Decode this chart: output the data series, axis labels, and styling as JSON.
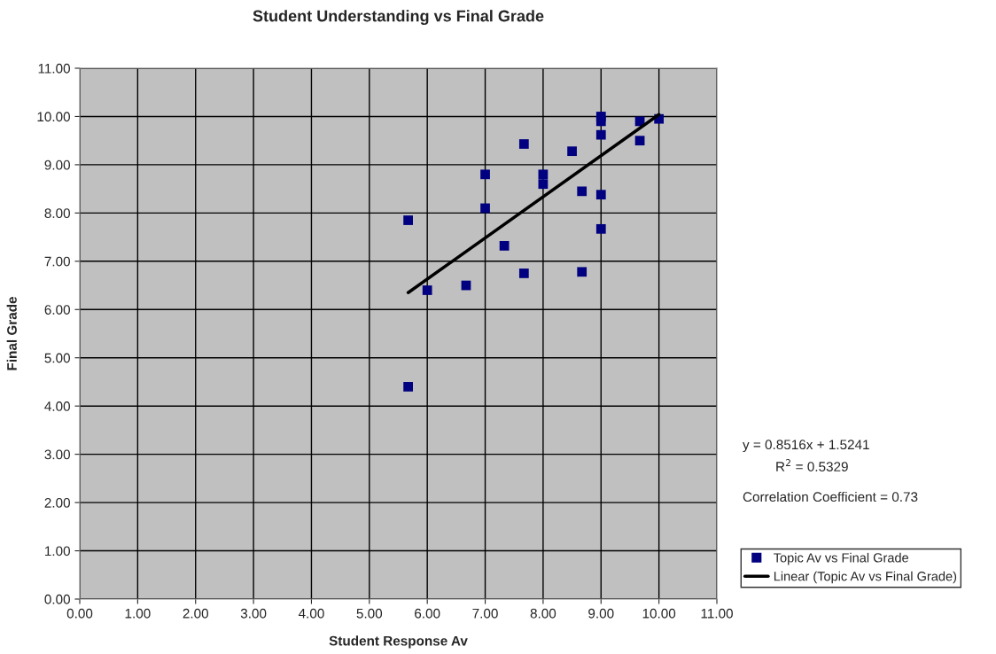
{
  "chart_data": {
    "type": "scatter",
    "title": "Student Understanding vs Final Grade",
    "xlabel": "Student Response Av",
    "ylabel": "Final Grade",
    "series": [
      {
        "name": "Topic Av vs Final Grade",
        "color": "#000080",
        "marker": "square",
        "x": [
          5.67,
          5.67,
          6.0,
          6.67,
          7.0,
          7.0,
          7.33,
          7.67,
          7.67,
          8.0,
          8.0,
          8.5,
          8.67,
          8.67,
          9.0,
          9.0,
          9.0,
          9.0,
          9.0,
          9.67,
          9.67,
          10.0
        ],
        "values": [
          7.85,
          4.4,
          6.4,
          6.5,
          8.8,
          8.1,
          7.32,
          9.43,
          6.75,
          8.8,
          8.6,
          9.28,
          8.45,
          6.78,
          10.0,
          9.9,
          9.62,
          8.38,
          7.67,
          9.9,
          9.5,
          9.95
        ]
      },
      {
        "name": "Linear (Topic Av vs Final Grade)",
        "type": "line",
        "color": "#000000",
        "line_style": "solid",
        "x": [
          5.67,
          10.0
        ],
        "values": [
          6.35,
          10.04
        ]
      }
    ],
    "xlim": [
      0,
      11
    ],
    "ylim": [
      0,
      11
    ],
    "xticks": [
      {
        "value": 0,
        "label": "0.00"
      },
      {
        "value": 1,
        "label": "1.00"
      },
      {
        "value": 2,
        "label": "2.00"
      },
      {
        "value": 3,
        "label": "3.00"
      },
      {
        "value": 4,
        "label": "4.00"
      },
      {
        "value": 5,
        "label": "5.00"
      },
      {
        "value": 6,
        "label": "6.00"
      },
      {
        "value": 7,
        "label": "7.00"
      },
      {
        "value": 8,
        "label": "8.00"
      },
      {
        "value": 9,
        "label": "9.00"
      },
      {
        "value": 10,
        "label": "10.00"
      },
      {
        "value": 11,
        "label": "11.00"
      }
    ],
    "yticks": [
      {
        "value": 0,
        "label": "0.00"
      },
      {
        "value": 1,
        "label": "1.00"
      },
      {
        "value": 2,
        "label": "2.00"
      },
      {
        "value": 3,
        "label": "3.00"
      },
      {
        "value": 4,
        "label": "4.00"
      },
      {
        "value": 5,
        "label": "5.00"
      },
      {
        "value": 6,
        "label": "6.00"
      },
      {
        "value": 7,
        "label": "7.00"
      },
      {
        "value": 8,
        "label": "8.00"
      },
      {
        "value": 9,
        "label": "9.00"
      },
      {
        "value": 10,
        "label": "10.00"
      },
      {
        "value": 11,
        "label": "11.00"
      }
    ],
    "grid": true,
    "legend": "right",
    "annotations": [
      "y = 0.8516x + 1.5241",
      "R$^{2}$ = 0.5329",
      "Correlation Coefficient = 0.73"
    ]
  }
}
